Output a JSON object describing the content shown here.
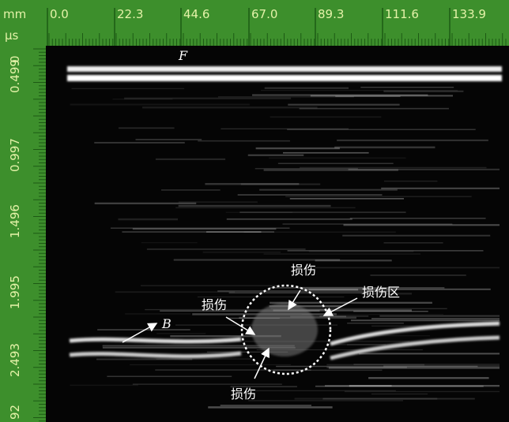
{
  "ruler": {
    "x_unit": "mm",
    "y_unit": "µs",
    "x_labels": [
      "0.0",
      "22.3",
      "44.6",
      "67.0",
      "89.3",
      "111.6",
      "133.9"
    ],
    "y_labels": [
      "0",
      "0.499",
      "0.997",
      "1.496",
      "1.995",
      "2.493",
      "92"
    ]
  },
  "annotations": {
    "front": "F",
    "back": "B",
    "damage_top": "损伤",
    "damage_left": "损伤",
    "damage_bottom": "损伤",
    "damage_zone": "损伤区"
  }
}
